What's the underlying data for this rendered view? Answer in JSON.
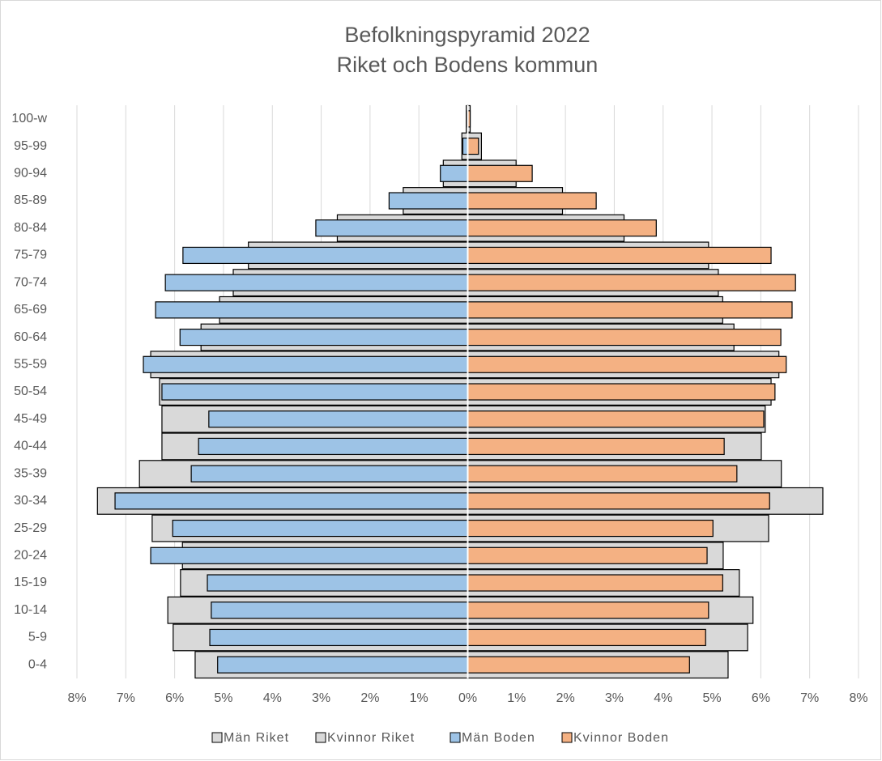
{
  "chart_data": {
    "type": "pyramid",
    "title": "Befolkningspyramid 2022",
    "subtitle": "Riket och Bodens kommun",
    "categories": [
      "0-4",
      "5-9",
      "10-14",
      "15-19",
      "20-24",
      "25-29",
      "30-34",
      "35-39",
      "40-44",
      "45-49",
      "50-54",
      "55-59",
      "60-64",
      "65-69",
      "70-74",
      "75-79",
      "80-84",
      "85-89",
      "90-94",
      "95-99",
      "100-w"
    ],
    "series": [
      {
        "name": "Män Riket",
        "color": "#d9d9d9",
        "values": [
          -5.58,
          -6.03,
          -6.14,
          -5.88,
          -5.84,
          -6.46,
          -7.58,
          -6.72,
          -6.26,
          -6.26,
          -6.31,
          -6.49,
          -5.46,
          -5.08,
          -4.8,
          -4.49,
          -2.67,
          -1.32,
          -0.5,
          -0.12,
          -0.03
        ]
      },
      {
        "name": "Kvinnor Riket",
        "color": "#d9d9d9",
        "values": [
          5.33,
          5.73,
          5.84,
          5.56,
          5.23,
          6.16,
          7.27,
          6.42,
          6.01,
          6.09,
          6.21,
          6.37,
          5.45,
          5.22,
          5.13,
          4.93,
          3.2,
          1.94,
          0.99,
          0.28,
          0.05
        ]
      },
      {
        "name": "Män Boden",
        "color": "#9dc3e6",
        "values": [
          -5.12,
          -5.28,
          -5.25,
          -5.33,
          -6.49,
          -6.04,
          -7.22,
          -5.66,
          -5.51,
          -5.3,
          -6.26,
          -6.64,
          -5.89,
          -6.39,
          -6.19,
          -5.83,
          -3.11,
          -1.61,
          -0.56,
          -0.1,
          -0.02
        ]
      },
      {
        "name": "Kvinnor Boden",
        "color": "#f4b183",
        "values": [
          4.54,
          4.87,
          4.93,
          5.22,
          4.9,
          5.02,
          6.18,
          5.51,
          5.25,
          6.06,
          6.29,
          6.52,
          6.41,
          6.64,
          6.71,
          6.21,
          3.86,
          2.63,
          1.32,
          0.22,
          0.05
        ]
      }
    ],
    "xlim": [
      -8,
      8
    ],
    "xticks": [
      {
        "value": -8,
        "label": "8%"
      },
      {
        "value": -7,
        "label": "7%"
      },
      {
        "value": -6,
        "label": "6%"
      },
      {
        "value": -5,
        "label": "5%"
      },
      {
        "value": -4,
        "label": "4%"
      },
      {
        "value": -3,
        "label": "3%"
      },
      {
        "value": -2,
        "label": "2%"
      },
      {
        "value": -1,
        "label": "1%"
      },
      {
        "value": 0,
        "label": "0%"
      },
      {
        "value": 1,
        "label": "1%"
      },
      {
        "value": 2,
        "label": "2%"
      },
      {
        "value": 3,
        "label": "3%"
      },
      {
        "value": 4,
        "label": "4%"
      },
      {
        "value": 5,
        "label": "5%"
      },
      {
        "value": 6,
        "label": "6%"
      },
      {
        "value": 7,
        "label": "7%"
      },
      {
        "value": 8,
        "label": "8%"
      }
    ],
    "grid": true,
    "legend": "bottom"
  }
}
